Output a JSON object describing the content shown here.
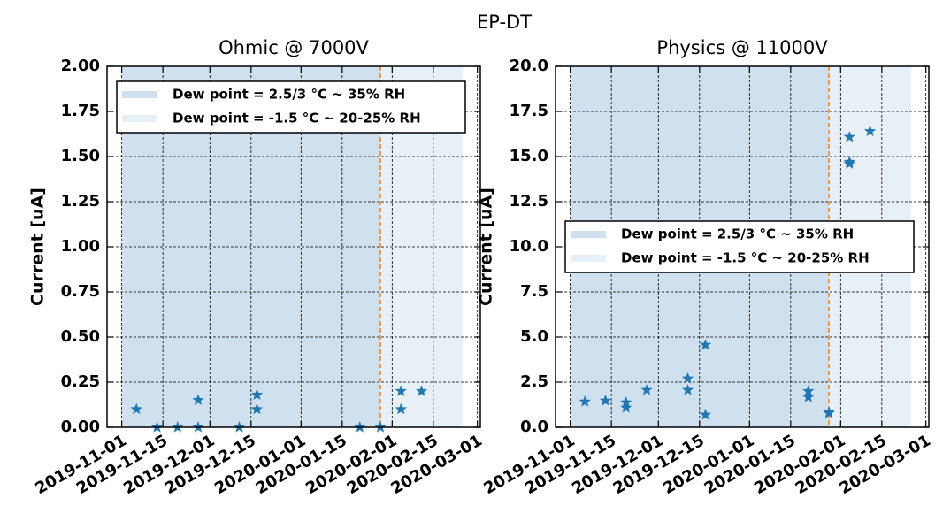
{
  "title": "EP-DT",
  "chart_data": [
    {
      "type": "scatter",
      "title": "Ohmic @ 7000V",
      "y_label": "Current [uA]",
      "xlim": [
        "2019-10-27",
        "2020-03-02"
      ],
      "xticks": [
        "2019-11-01",
        "2019-11-15",
        "2019-12-01",
        "2019-12-15",
        "2020-01-01",
        "2020-01-15",
        "2020-02-01",
        "2020-02-15",
        "2020-03-01"
      ],
      "ylim": [
        0,
        2
      ],
      "yticks": [
        {
          "value": 0,
          "label": "0.00"
        },
        0.25,
        {
          "value": 0.5,
          "label": "0.50"
        },
        0.75,
        {
          "value": 1,
          "label": "1.00"
        },
        1.25,
        {
          "value": 1.5,
          "label": "1.50"
        },
        1.75,
        {
          "value": 2,
          "label": "2.00"
        }
      ],
      "grid": true,
      "legend_loc": "upper right",
      "marker": "star",
      "spans": [
        {
          "name": "Dew point = 2.5/3 °C ~ 35% RH",
          "start": "2019-11-01",
          "end": "2020-01-28",
          "color": "#cfe1ee"
        },
        {
          "name": "Dew point = -1.5 °C ~ 20-25% RH",
          "start": "2020-01-28",
          "end": "2020-02-25",
          "color": "#e7eff7"
        }
      ],
      "vline": {
        "x": "2020-01-28",
        "color": "#ff7f0e"
      },
      "series": [
        {
          "color": "#1f77b4",
          "x": [
            "2019-11-06",
            "2019-11-13",
            "2019-11-20",
            "2019-11-27",
            "2019-11-27",
            "2019-12-11",
            "2019-12-17",
            "2019-12-17",
            "2020-01-21",
            "2020-01-28",
            "2020-02-04",
            "2020-02-04",
            "2020-02-11"
          ],
          "values": [
            0.1,
            0,
            0,
            0,
            0.15,
            0,
            0.18,
            0.1,
            0,
            0,
            0.2,
            0.1,
            0.2
          ]
        }
      ]
    },
    {
      "type": "scatter",
      "title": "Physics @ 11000V",
      "y_label": "Current [uA]",
      "xlim": [
        "2019-10-27",
        "2020-03-02"
      ],
      "xticks": [
        "2019-11-01",
        "2019-11-15",
        "2019-12-01",
        "2019-12-15",
        "2020-01-01",
        "2020-01-15",
        "2020-02-01",
        "2020-02-15",
        "2020-03-01"
      ],
      "ylim": [
        0,
        20
      ],
      "yticks": [
        {
          "value": 0,
          "label": "0.0"
        },
        2.5,
        {
          "value": 5,
          "label": "5.0"
        },
        7.5,
        {
          "value": 10,
          "label": "10.0"
        },
        12.5,
        {
          "value": 15,
          "label": "15.0"
        },
        17.5,
        {
          "value": 20,
          "label": "20.0"
        }
      ],
      "grid": true,
      "legend_loc": "center right",
      "marker": "star",
      "spans": [
        {
          "name": "Dew point = 2.5/3 °C ~ 35% RH",
          "start": "2019-11-01",
          "end": "2020-01-28",
          "color": "#cfe1ee"
        },
        {
          "name": "Dew point = -1.5 °C ~ 20-25% RH",
          "start": "2020-01-28",
          "end": "2020-02-25",
          "color": "#e7eff7"
        }
      ],
      "vline": {
        "x": "2020-01-28",
        "color": "#ff7f0e"
      },
      "series": [
        {
          "color": "#1f77b4",
          "x": [
            "2019-11-06",
            "2019-11-13",
            "2019-11-20",
            "2019-11-20",
            "2019-11-27",
            "2019-12-11",
            "2019-12-11",
            "2019-12-17",
            "2019-12-17",
            "2020-01-21",
            "2020-01-21",
            "2020-01-28",
            "2020-01-28",
            "2020-02-04",
            "2020-02-04",
            "2020-02-04",
            "2020-02-11"
          ],
          "values": [
            1.42,
            1.47,
            1.37,
            1.08,
            2.06,
            2.7,
            2.06,
            4.56,
            0.69,
            2.0,
            1.67,
            0.83,
            0.78,
            16.08,
            14.7,
            14.6,
            16.4
          ]
        }
      ]
    }
  ]
}
